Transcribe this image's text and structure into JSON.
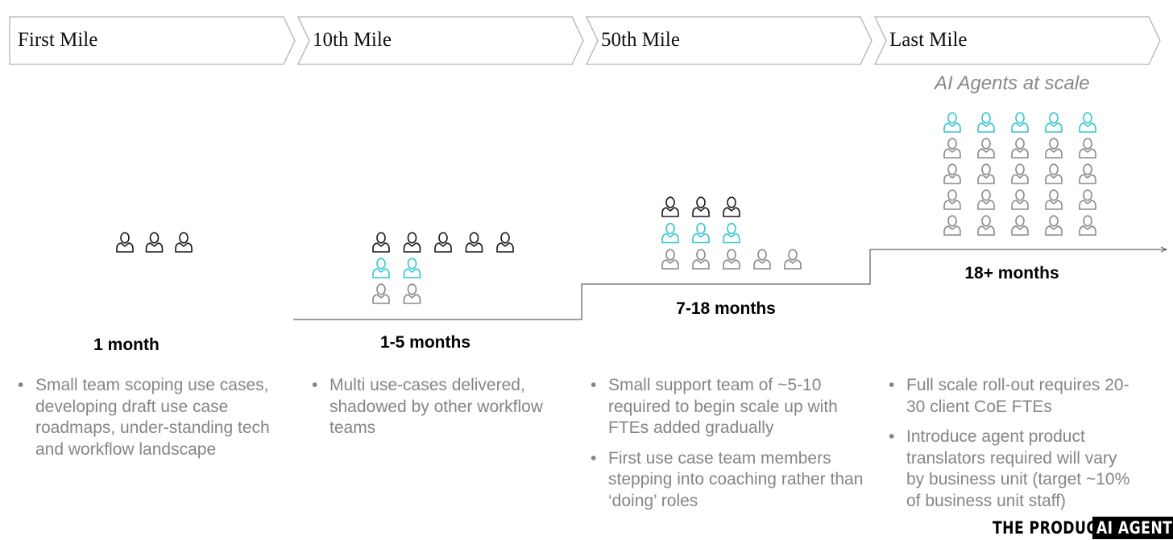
{
  "stages": [
    {
      "label": "First Mile",
      "duration": "1 month",
      "bullets": [
        "Small team scoping use cases, developing draft use case roadmaps, under-standing tech and workflow landscape"
      ]
    },
    {
      "label": "10th Mile",
      "duration": "1-5 months",
      "bullets": [
        "Multi use-cases delivered, shadowed by other workflow teams"
      ]
    },
    {
      "label": "50th Mile",
      "duration": "7-18 months",
      "bullets": [
        "Small support team of ~5-10 required to begin scale up with FTEs added gradually",
        "First use case team members stepping into coaching rather than ‘doing’ roles"
      ]
    },
    {
      "label": "Last Mile",
      "duration": "18+ months",
      "bullets": [
        "Full scale roll-out requires 20-30 client CoE FTEs",
        "Introduce agent product translators required will vary by business unit (target ~10% of business unit staff)"
      ]
    }
  ],
  "last_mile_subtitle": "AI Agents at scale",
  "watermark": {
    "left": "THE PRODUCT",
    "right": "AI AGENT"
  },
  "colors": {
    "black_person": "#1a1a1a",
    "teal_person": "#35c6cf",
    "gray_person": "#8a8a8a",
    "chevron_border": "#b3b3b3",
    "step_line": "#666666"
  },
  "people_groups": [
    {
      "stage": "First Mile",
      "rows": [
        [
          "black",
          "black",
          "black"
        ]
      ]
    },
    {
      "stage": "10th Mile",
      "rows": [
        [
          "black",
          "black",
          "black",
          "black",
          "black"
        ],
        [
          "teal",
          "teal"
        ],
        [
          "gray",
          "gray"
        ]
      ]
    },
    {
      "stage": "50th Mile",
      "rows": [
        [
          "black",
          "black",
          "black"
        ],
        [
          "teal",
          "teal",
          "teal"
        ],
        [
          "gray",
          "gray",
          "gray",
          "gray",
          "gray"
        ]
      ]
    },
    {
      "stage": "Last Mile",
      "rows": [
        [
          "teal",
          "teal",
          "teal",
          "teal",
          "teal"
        ],
        [
          "gray",
          "gray",
          "gray",
          "gray",
          "gray"
        ],
        [
          "gray",
          "gray",
          "gray",
          "gray",
          "gray"
        ],
        [
          "gray",
          "gray",
          "gray",
          "gray",
          "gray"
        ],
        [
          "gray",
          "gray",
          "gray",
          "gray",
          "gray"
        ]
      ]
    }
  ]
}
